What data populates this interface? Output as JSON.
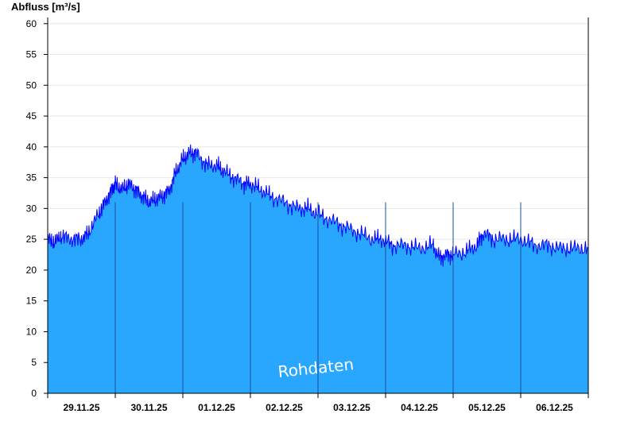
{
  "chart_data": {
    "type": "area",
    "ylabel": "Abfluss [m³/s]",
    "ylim": [
      0,
      61
    ],
    "yticks": [
      0,
      5,
      10,
      15,
      20,
      25,
      30,
      35,
      40,
      45,
      50,
      55,
      60
    ],
    "x_labels": [
      "29.11.25",
      "30.11.25",
      "01.12.25",
      "02.12.25",
      "03.12.25",
      "04.12.25",
      "05.12.25",
      "06.12.25"
    ],
    "x_range_days": [
      0,
      8
    ],
    "grid": "horizontal",
    "fill_color": "#29a7ff",
    "line_color": "#0000ff",
    "watermark": "Rohdaten",
    "series": [
      {
        "x_days": [
          0,
          0.1,
          0.2,
          0.35,
          0.5,
          0.6,
          0.75,
          0.85,
          0.95,
          1.0,
          1.1,
          1.2,
          1.3,
          1.4,
          1.5,
          1.6,
          1.7,
          1.8,
          1.9,
          2.0,
          2.1,
          2.2,
          2.35,
          2.5,
          2.6,
          2.75,
          2.9,
          3.0,
          3.15,
          3.3,
          3.5,
          3.7,
          3.85,
          4.0,
          4.2,
          4.4,
          4.6,
          4.8,
          4.95,
          5.1,
          5.3,
          5.5,
          5.7,
          5.8,
          5.9,
          6.0,
          6.2,
          6.35,
          6.45,
          6.6,
          6.8,
          7.0,
          7.2,
          7.4,
          7.6,
          7.8,
          8.0
        ],
        "values": [
          25,
          24.5,
          25.5,
          25,
          25,
          26,
          29,
          31,
          33,
          34,
          33,
          34,
          33,
          32,
          31,
          31.5,
          32,
          33,
          36,
          38,
          39,
          39,
          37,
          37,
          36,
          35,
          34,
          34,
          33,
          32,
          31,
          30,
          30,
          29,
          28,
          27,
          26,
          25,
          25,
          24,
          24,
          23.5,
          24,
          22,
          22.5,
          22.5,
          23,
          24,
          26,
          25,
          25,
          25,
          24,
          24,
          23.5,
          23.5,
          23.5
        ]
      }
    ]
  }
}
